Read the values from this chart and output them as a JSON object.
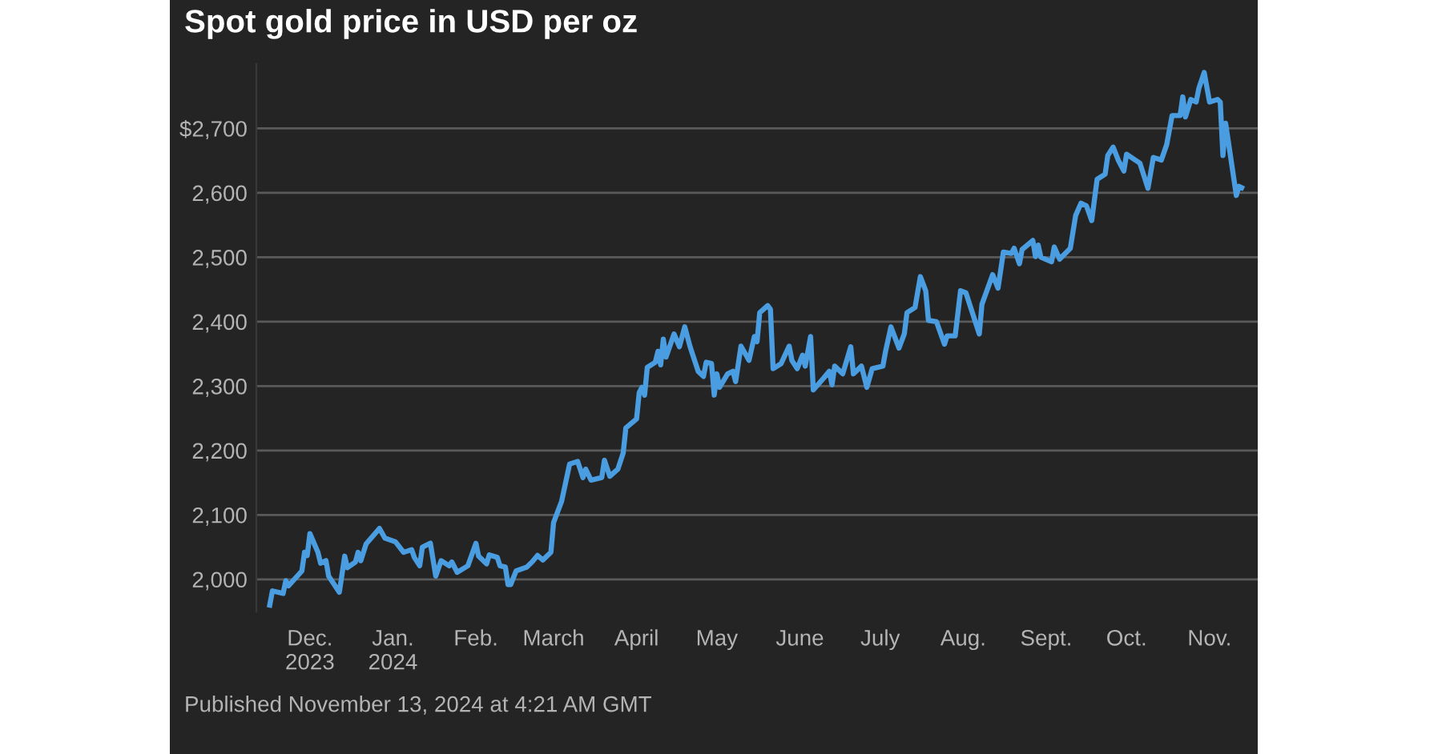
{
  "chart_data": {
    "type": "line",
    "title": "Spot gold price in USD per oz",
    "annotations": [
      "Published November 13, 2024 at 4:21 AM GMT"
    ],
    "x": [
      "2023-11-16",
      "2023-11-17",
      "2023-11-21",
      "2023-11-22",
      "2023-11-23",
      "2023-11-28",
      "2023-11-29",
      "2023-11-30",
      "2023-12-01",
      "2023-12-04",
      "2023-12-05",
      "2023-12-07",
      "2023-12-08",
      "2023-12-12",
      "2023-12-14",
      "2023-12-15",
      "2023-12-18",
      "2023-12-19",
      "2023-12-20",
      "2023-12-22",
      "2023-12-27",
      "2023-12-29",
      "2024-01-02",
      "2024-01-05",
      "2024-01-08",
      "2024-01-09",
      "2024-01-11",
      "2024-01-12",
      "2024-01-15",
      "2024-01-17",
      "2024-01-19",
      "2024-01-22",
      "2024-01-23",
      "2024-01-25",
      "2024-01-29",
      "2024-02-01",
      "2024-02-02",
      "2024-02-05",
      "2024-02-06",
      "2024-02-09",
      "2024-02-10",
      "2024-02-12",
      "2024-02-13",
      "2024-02-14",
      "2024-02-16",
      "2024-02-20",
      "2024-02-22",
      "2024-02-24",
      "2024-02-26",
      "2024-02-29",
      "2024-03-01",
      "2024-03-04",
      "2024-03-07",
      "2024-03-10",
      "2024-03-12",
      "2024-03-13",
      "2024-03-15",
      "2024-03-19",
      "2024-03-20",
      "2024-03-22",
      "2024-03-25",
      "2024-03-27",
      "2024-03-28",
      "2024-04-01",
      "2024-04-02",
      "2024-04-03",
      "2024-04-04",
      "2024-04-05",
      "2024-04-08",
      "2024-04-09",
      "2024-04-10",
      "2024-04-11",
      "2024-04-12",
      "2024-04-15",
      "2024-04-17",
      "2024-04-19",
      "2024-04-21",
      "2024-04-24",
      "2024-04-26",
      "2024-04-27",
      "2024-04-29",
      "2024-04-30",
      "2024-05-01",
      "2024-05-02",
      "2024-05-05",
      "2024-05-07",
      "2024-05-08",
      "2024-05-10",
      "2024-05-13",
      "2024-05-15",
      "2024-05-16",
      "2024-05-17",
      "2024-05-20",
      "2024-05-21",
      "2024-05-22",
      "2024-05-25",
      "2024-05-28",
      "2024-05-29",
      "2024-05-31",
      "2024-06-02",
      "2024-06-03",
      "2024-06-05",
      "2024-06-06",
      "2024-06-10",
      "2024-06-12",
      "2024-06-13",
      "2024-06-14",
      "2024-06-17",
      "2024-06-20",
      "2024-06-21",
      "2024-06-24",
      "2024-06-26",
      "2024-06-28",
      "2024-07-02",
      "2024-07-03",
      "2024-07-05",
      "2024-07-08",
      "2024-07-10",
      "2024-07-11",
      "2024-07-14",
      "2024-07-16",
      "2024-07-18",
      "2024-07-19",
      "2024-07-22",
      "2024-07-25",
      "2024-07-26",
      "2024-07-29",
      "2024-07-31",
      "2024-08-02",
      "2024-08-07",
      "2024-08-08",
      "2024-08-12",
      "2024-08-14",
      "2024-08-16",
      "2024-08-19",
      "2024-08-20",
      "2024-08-22",
      "2024-08-23",
      "2024-08-27",
      "2024-08-28",
      "2024-08-29",
      "2024-08-30",
      "2024-09-03",
      "2024-09-04",
      "2024-09-06",
      "2024-09-10",
      "2024-09-12",
      "2024-09-14",
      "2024-09-16",
      "2024-09-18",
      "2024-09-20",
      "2024-09-23",
      "2024-09-24",
      "2024-09-26",
      "2024-09-28",
      "2024-09-30",
      "2024-10-01",
      "2024-10-06",
      "2024-10-07",
      "2024-10-09",
      "2024-10-11",
      "2024-10-14",
      "2024-10-16",
      "2024-10-18",
      "2024-10-21",
      "2024-10-22",
      "2024-10-23",
      "2024-10-25",
      "2024-10-27",
      "2024-10-28",
      "2024-10-30",
      "2024-11-01",
      "2024-11-04",
      "2024-11-05",
      "2024-11-06",
      "2024-11-07",
      "2024-11-08",
      "2024-11-11",
      "2024-11-12",
      "2024-11-13"
    ],
    "series": [
      {
        "color": "#4a9de0",
        "values": [
          1960,
          1982,
          1978,
          1998,
          1990,
          2013,
          2042,
          2037,
          2071,
          2042,
          2025,
          2029,
          2005,
          1980,
          2036,
          2018,
          2027,
          2042,
          2029,
          2055,
          2079,
          2064,
          2058,
          2042,
          2046,
          2034,
          2021,
          2050,
          2056,
          2005,
          2029,
          2021,
          2027,
          2011,
          2021,
          2056,
          2036,
          2024,
          2038,
          2034,
          2021,
          2019,
          1992,
          1992,
          2013,
          2019,
          2027,
          2037,
          2030,
          2042,
          2088,
          2121,
          2179,
          2183,
          2158,
          2171,
          2154,
          2158,
          2185,
          2160,
          2171,
          2196,
          2235,
          2249,
          2290,
          2298,
          2286,
          2329,
          2337,
          2354,
          2333,
          2373,
          2345,
          2381,
          2361,
          2392,
          2361,
          2323,
          2315,
          2337,
          2335,
          2286,
          2319,
          2298,
          2319,
          2323,
          2307,
          2362,
          2340,
          2377,
          2369,
          2414,
          2425,
          2419,
          2327,
          2335,
          2362,
          2340,
          2327,
          2348,
          2331,
          2377,
          2294,
          2313,
          2323,
          2302,
          2331,
          2319,
          2361,
          2319,
          2331,
          2298,
          2327,
          2331,
          2354,
          2392,
          2359,
          2381,
          2414,
          2422,
          2470,
          2448,
          2402,
          2400,
          2365,
          2378,
          2378,
          2448,
          2445,
          2381,
          2427,
          2473,
          2452,
          2508,
          2506,
          2514,
          2490,
          2512,
          2526,
          2501,
          2519,
          2500,
          2493,
          2516,
          2497,
          2514,
          2565,
          2584,
          2580,
          2557,
          2621,
          2629,
          2658,
          2671,
          2650,
          2634,
          2660,
          2646,
          2633,
          2607,
          2655,
          2651,
          2675,
          2720,
          2720,
          2749,
          2718,
          2745,
          2741,
          2762,
          2787,
          2741,
          2745,
          2741,
          2658,
          2708,
          2680,
          2596,
          2610,
          2608
        ]
      }
    ],
    "xlim": [
      "2023-11-11",
      "2024-11-19"
    ],
    "xticks": [
      {
        "value": "2023-12-01",
        "label": "Dec.\n2023"
      },
      {
        "value": "2024-01-01",
        "label": "Jan.\n2024"
      },
      {
        "value": "2024-02-01",
        "label": "Feb."
      },
      {
        "value": "2024-03-01",
        "label": "March"
      },
      {
        "value": "2024-04-01",
        "label": "April"
      },
      {
        "value": "2024-05-01",
        "label": "May"
      },
      {
        "value": "2024-06-01",
        "label": "June"
      },
      {
        "value": "2024-07-01",
        "label": "July"
      },
      {
        "value": "2024-08-01",
        "label": "Aug."
      },
      {
        "value": "2024-09-01",
        "label": "Sept."
      },
      {
        "value": "2024-10-01",
        "label": "Oct."
      },
      {
        "value": "2024-11-01",
        "label": "Nov."
      }
    ],
    "ylim": [
      1950,
      2800
    ],
    "yticks": [
      {
        "value": 2000,
        "label": "2,000"
      },
      {
        "value": 2100,
        "label": "2,100"
      },
      {
        "value": 2200,
        "label": "2,200"
      },
      {
        "value": 2300,
        "label": "2,300"
      },
      {
        "value": 2400,
        "label": "2,400"
      },
      {
        "value": 2500,
        "label": "2,500"
      },
      {
        "value": 2600,
        "label": "2,600"
      },
      {
        "value": 2700,
        "label": "$2,700"
      }
    ],
    "grid": "y",
    "marker": "none",
    "line_style": "solid"
  }
}
